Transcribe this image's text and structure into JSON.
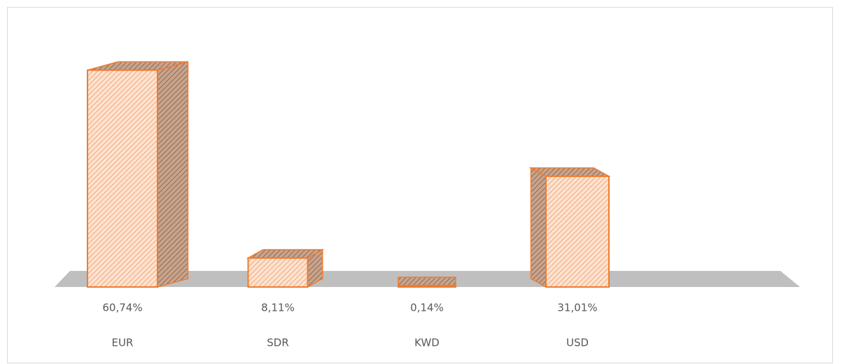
{
  "chart_data": {
    "type": "bar3d",
    "categories": [
      "EUR",
      "SDR",
      "KWD",
      "USD"
    ],
    "values": [
      60.74,
      8.11,
      0.14,
      31.01
    ],
    "value_labels": [
      "60,74%",
      "8,11%",
      "0,14%",
      "31,01%"
    ],
    "color": "#ed7d31"
  }
}
